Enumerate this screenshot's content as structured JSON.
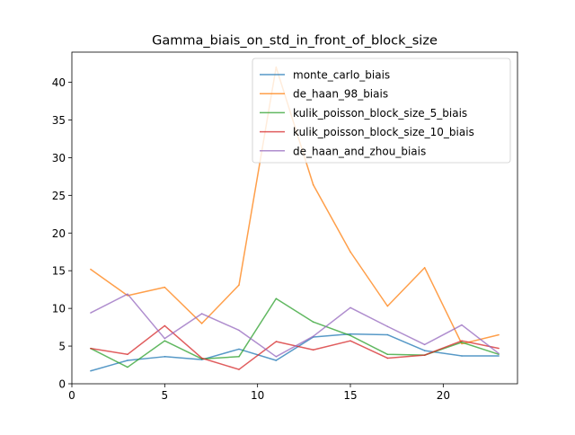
{
  "chart_data": {
    "type": "line",
    "title": "Gamma_biais_on_std_in_front_of_block_size",
    "xlabel": "",
    "ylabel": "",
    "xlim": [
      0,
      24
    ],
    "ylim": [
      0,
      44
    ],
    "xticks": [
      0,
      5,
      10,
      15,
      20
    ],
    "yticks": [
      0,
      5,
      10,
      15,
      20,
      25,
      30,
      35,
      40
    ],
    "grid": false,
    "legend_position": "upper right",
    "x": [
      1,
      3,
      5,
      7,
      9,
      11,
      13,
      15,
      17,
      19,
      21,
      23
    ],
    "series": [
      {
        "name": "monte_carlo_biais",
        "color": "#1f77b4",
        "values": [
          1.7,
          3.1,
          3.6,
          3.2,
          4.6,
          3.1,
          6.2,
          6.6,
          6.5,
          4.4,
          3.7,
          3.7
        ]
      },
      {
        "name": "de_haan_98_biais",
        "color": "#ff7f0e",
        "values": [
          15.2,
          11.7,
          12.8,
          8.0,
          13.1,
          42.0,
          26.4,
          17.5,
          10.3,
          15.4,
          5.3,
          6.5
        ]
      },
      {
        "name": "kulik_poisson_block_size_5_biais",
        "color": "#2ca02c",
        "values": [
          4.7,
          2.2,
          5.7,
          3.3,
          3.6,
          11.3,
          8.2,
          6.4,
          3.9,
          3.8,
          5.5,
          3.9
        ]
      },
      {
        "name": "kulik_poisson_block_size_10_biais",
        "color": "#d62728",
        "values": [
          4.7,
          3.9,
          7.7,
          3.4,
          1.9,
          5.6,
          4.5,
          5.7,
          3.4,
          3.8,
          5.7,
          4.7
        ]
      },
      {
        "name": "de_haan_and_zhou_biais",
        "color": "#9467bd",
        "values": [
          9.4,
          11.9,
          6.0,
          9.3,
          7.1,
          3.6,
          6.3,
          10.1,
          7.6,
          5.2,
          7.8,
          4.0
        ]
      }
    ]
  }
}
